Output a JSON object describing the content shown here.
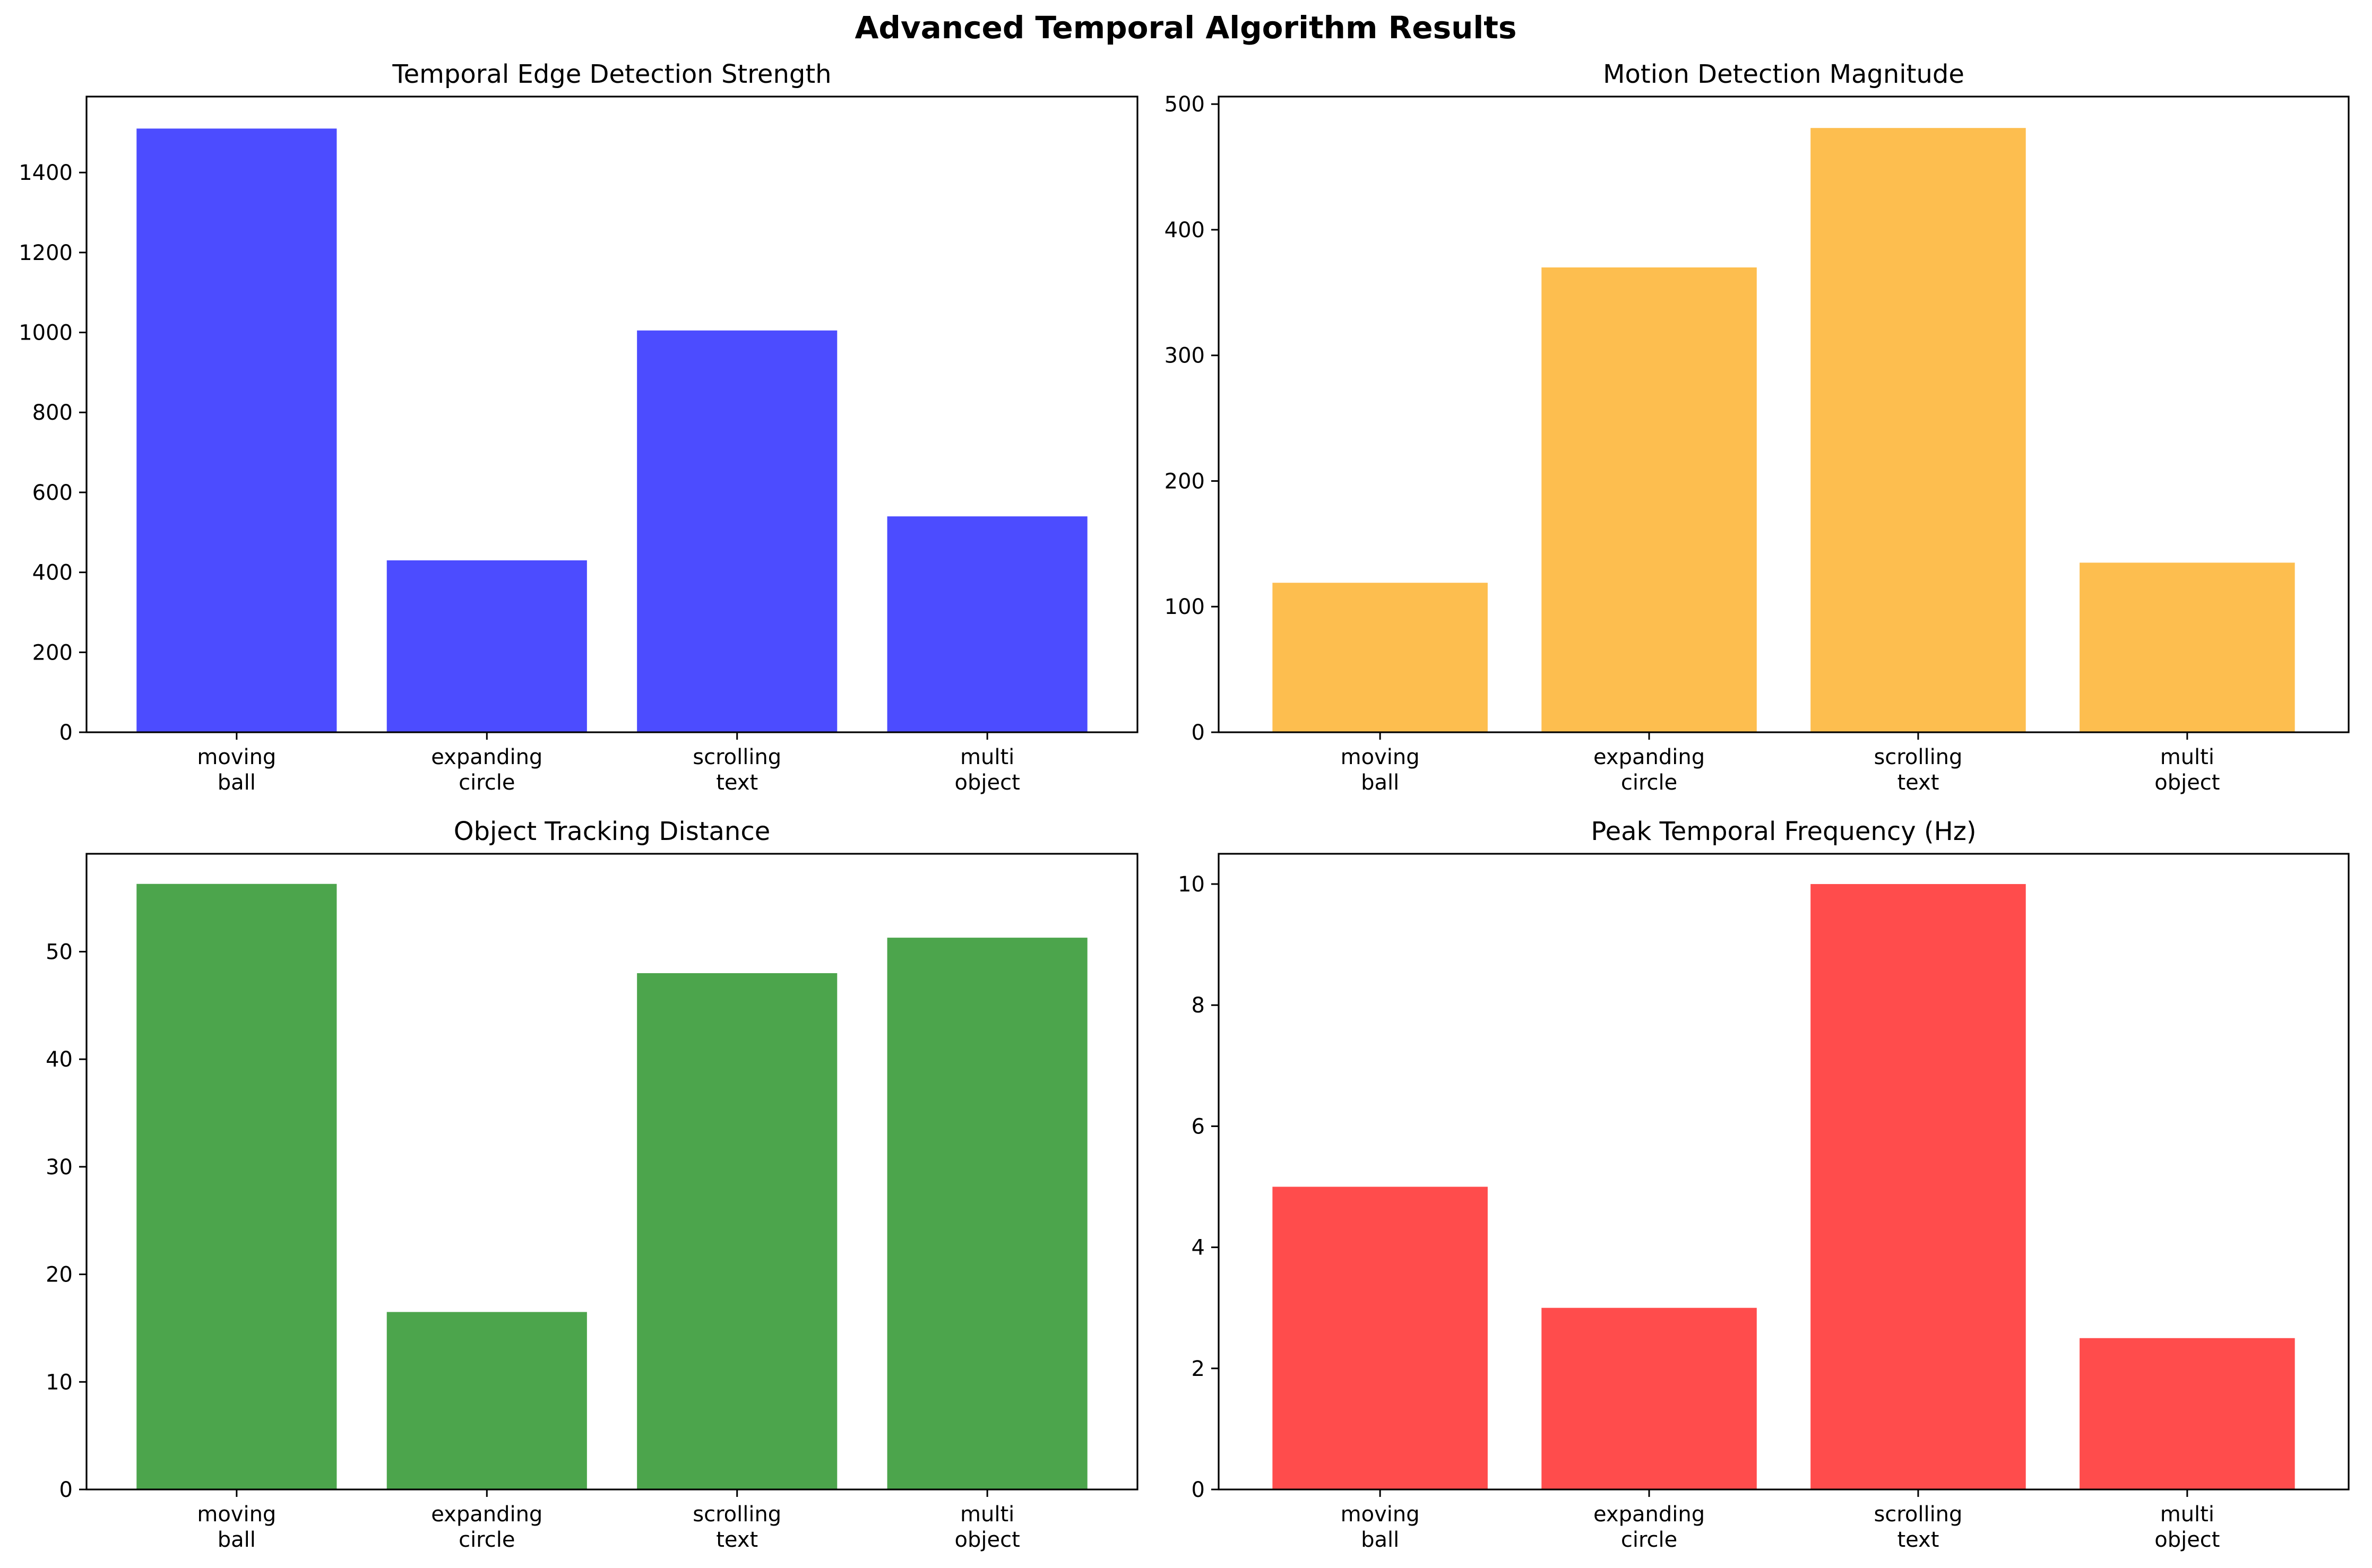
{
  "figure": {
    "title": "Advanced Temporal Algorithm Results"
  },
  "chart_data": [
    {
      "type": "bar",
      "title": "Temporal Edge Detection Strength",
      "categories": [
        [
          "moving",
          "ball"
        ],
        [
          "expanding",
          "circle"
        ],
        [
          "scrolling",
          "text"
        ],
        [
          "multi",
          "object"
        ]
      ],
      "values": [
        1510,
        430,
        1005,
        540
      ],
      "ylim": [
        0,
        1590
      ],
      "yticks": [
        0,
        200,
        400,
        600,
        800,
        1000,
        1200,
        1400
      ],
      "color": "#4c4cff",
      "grid": false
    },
    {
      "type": "bar",
      "title": "Motion Detection Magnitude",
      "categories": [
        [
          "moving",
          "ball"
        ],
        [
          "expanding",
          "circle"
        ],
        [
          "scrolling",
          "text"
        ],
        [
          "multi",
          "object"
        ]
      ],
      "values": [
        119,
        370,
        481,
        135
      ],
      "ylim": [
        0,
        506
      ],
      "yticks": [
        0,
        100,
        200,
        300,
        400,
        500
      ],
      "color": "#fdbe4f",
      "grid": false
    },
    {
      "type": "bar",
      "title": "Object Tracking Distance",
      "categories": [
        [
          "moving",
          "ball"
        ],
        [
          "expanding",
          "circle"
        ],
        [
          "scrolling",
          "text"
        ],
        [
          "multi",
          "object"
        ]
      ],
      "values": [
        56.3,
        16.5,
        48.0,
        51.3
      ],
      "ylim": [
        0,
        59.1
      ],
      "yticks": [
        0,
        10,
        20,
        30,
        40,
        50
      ],
      "color": "#4ca54c",
      "grid": false
    },
    {
      "type": "bar",
      "title": "Peak Temporal Frequency (Hz)",
      "categories": [
        [
          "moving",
          "ball"
        ],
        [
          "expanding",
          "circle"
        ],
        [
          "scrolling",
          "text"
        ],
        [
          "multi",
          "object"
        ]
      ],
      "values": [
        5,
        3,
        10,
        2.5
      ],
      "ylim": [
        0,
        10.5
      ],
      "yticks": [
        0,
        2,
        4,
        6,
        8,
        10
      ],
      "color": "#ff4c4c",
      "grid": false
    }
  ]
}
